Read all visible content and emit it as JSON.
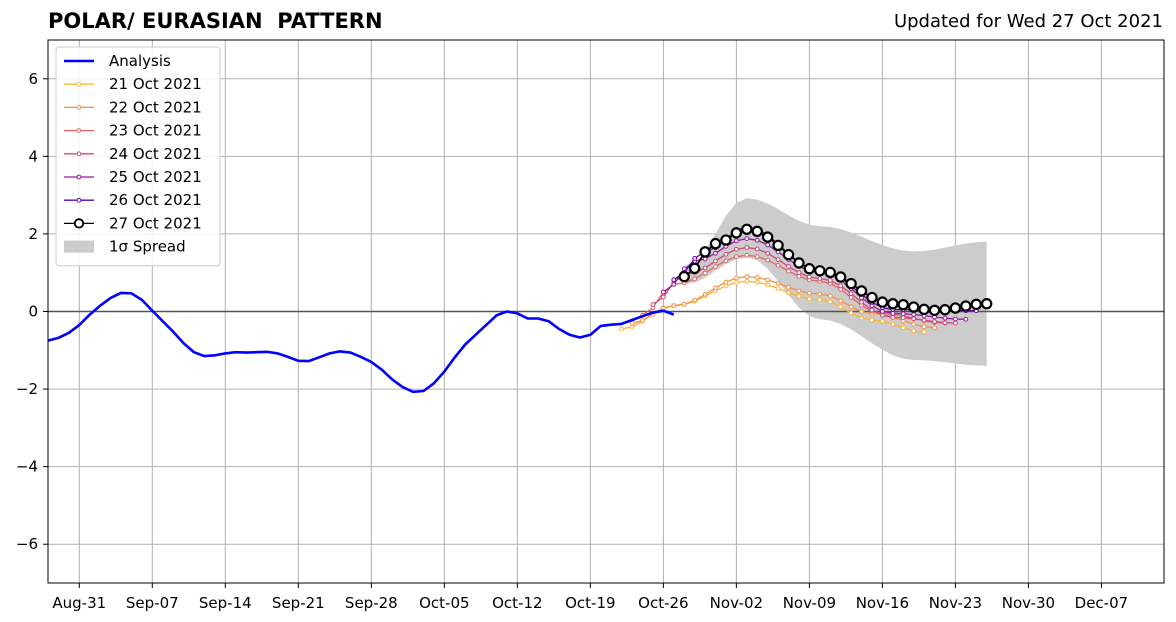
{
  "header": {
    "title": "POLAR/ EURASIAN  PATTERN",
    "updated": "Updated for Wed 27 Oct 2021"
  },
  "chart_data": {
    "type": "line",
    "title": "POLAR/ EURASIAN  PATTERN",
    "xlabel": "",
    "ylabel": "",
    "ylim": [
      -7,
      7
    ],
    "xlim": [
      "2021-08-28",
      "2021-12-13"
    ],
    "grid": true,
    "legend_position": "top-left",
    "y_ticks": [
      -6,
      -4,
      -2,
      0,
      2,
      4,
      6
    ],
    "y_tick_labels": [
      "−6",
      "−4",
      "−2",
      "0",
      "2",
      "4",
      "6"
    ],
    "x_ticks": [
      "2021-08-31",
      "2021-09-07",
      "2021-09-14",
      "2021-09-21",
      "2021-09-28",
      "2021-10-05",
      "2021-10-12",
      "2021-10-19",
      "2021-10-26",
      "2021-11-02",
      "2021-11-09",
      "2021-11-16",
      "2021-11-23",
      "2021-11-30",
      "2021-12-07"
    ],
    "x_tick_labels": [
      "Aug-31",
      "Sep-07",
      "Sep-14",
      "Sep-21",
      "Sep-28",
      "Oct-05",
      "Oct-12",
      "Oct-19",
      "Oct-26",
      "Nov-02",
      "Nov-09",
      "Nov-16",
      "Nov-23",
      "Nov-30",
      "Dec-07"
    ],
    "analysis": {
      "name": "Analysis",
      "color": "#0000ff",
      "points": [
        [
          "2021-08-28",
          -0.75
        ],
        [
          "2021-08-29",
          -0.68
        ],
        [
          "2021-08-30",
          -0.55
        ],
        [
          "2021-08-31",
          -0.35
        ],
        [
          "2021-09-01",
          -0.08
        ],
        [
          "2021-09-02",
          0.15
        ],
        [
          "2021-09-03",
          0.35
        ],
        [
          "2021-09-04",
          0.48
        ],
        [
          "2021-09-05",
          0.47
        ],
        [
          "2021-09-06",
          0.3
        ],
        [
          "2021-09-07",
          0.02
        ],
        [
          "2021-09-08",
          -0.25
        ],
        [
          "2021-09-09",
          -0.52
        ],
        [
          "2021-09-10",
          -0.82
        ],
        [
          "2021-09-11",
          -1.05
        ],
        [
          "2021-09-12",
          -1.15
        ],
        [
          "2021-09-13",
          -1.13
        ],
        [
          "2021-09-14",
          -1.08
        ],
        [
          "2021-09-15",
          -1.05
        ],
        [
          "2021-09-16",
          -1.06
        ],
        [
          "2021-09-17",
          -1.05
        ],
        [
          "2021-09-18",
          -1.04
        ],
        [
          "2021-09-19",
          -1.08
        ],
        [
          "2021-09-20",
          -1.17
        ],
        [
          "2021-09-21",
          -1.27
        ],
        [
          "2021-09-22",
          -1.28
        ],
        [
          "2021-09-23",
          -1.18
        ],
        [
          "2021-09-24",
          -1.08
        ],
        [
          "2021-09-25",
          -1.03
        ],
        [
          "2021-09-26",
          -1.06
        ],
        [
          "2021-09-27",
          -1.17
        ],
        [
          "2021-09-28",
          -1.3
        ],
        [
          "2021-09-29",
          -1.5
        ],
        [
          "2021-09-30",
          -1.75
        ],
        [
          "2021-10-01",
          -1.95
        ],
        [
          "2021-10-02",
          -2.07
        ],
        [
          "2021-10-03",
          -2.05
        ],
        [
          "2021-10-04",
          -1.85
        ],
        [
          "2021-10-05",
          -1.55
        ],
        [
          "2021-10-06",
          -1.18
        ],
        [
          "2021-10-07",
          -0.85
        ],
        [
          "2021-10-08",
          -0.6
        ],
        [
          "2021-10-09",
          -0.35
        ],
        [
          "2021-10-10",
          -0.1
        ],
        [
          "2021-10-11",
          0.0
        ],
        [
          "2021-10-12",
          -0.05
        ],
        [
          "2021-10-13",
          -0.18
        ],
        [
          "2021-10-14",
          -0.18
        ],
        [
          "2021-10-15",
          -0.25
        ],
        [
          "2021-10-16",
          -0.45
        ],
        [
          "2021-10-17",
          -0.6
        ],
        [
          "2021-10-18",
          -0.67
        ],
        [
          "2021-10-19",
          -0.6
        ],
        [
          "2021-10-20",
          -0.37
        ],
        [
          "2021-10-21",
          -0.34
        ],
        [
          "2021-10-22",
          -0.32
        ],
        [
          "2021-10-23",
          -0.22
        ],
        [
          "2021-10-24",
          -0.12
        ],
        [
          "2021-10-25",
          -0.03
        ],
        [
          "2021-10-26",
          0.02
        ],
        [
          "2021-10-27",
          -0.08
        ]
      ]
    },
    "forecasts": [
      {
        "name": "21 Oct 2021",
        "color": "#fdb42f",
        "points": [
          [
            "2021-10-22",
            -0.45
          ],
          [
            "2021-10-27",
            0.15
          ],
          [
            "2021-11-03",
            0.78
          ],
          [
            "2021-11-10",
            0.3
          ],
          [
            "2021-11-15",
            -0.22
          ],
          [
            "2021-11-20",
            -0.53
          ]
        ]
      },
      {
        "name": "22 Oct 2021",
        "color": "#f68f44",
        "points": [
          [
            "2021-10-23",
            -0.3
          ],
          [
            "2021-10-27",
            0.15
          ],
          [
            "2021-11-03",
            0.9
          ],
          [
            "2021-11-10",
            0.45
          ],
          [
            "2021-11-15",
            -0.05
          ],
          [
            "2021-11-21",
            -0.42
          ]
        ]
      },
      {
        "name": "23 Oct 2021",
        "color": "#e16462",
        "points": [
          [
            "2021-10-24",
            -0.1
          ],
          [
            "2021-10-27",
            0.7
          ],
          [
            "2021-11-03",
            1.45
          ],
          [
            "2021-11-10",
            0.78
          ],
          [
            "2021-11-16",
            -0.05
          ],
          [
            "2021-11-22",
            -0.3
          ]
        ]
      },
      {
        "name": "24 Oct 2021",
        "color": "#cc4778",
        "points": [
          [
            "2021-10-25",
            0.18
          ],
          [
            "2021-10-28",
            0.95
          ],
          [
            "2021-11-03",
            1.65
          ],
          [
            "2021-11-10",
            0.85
          ],
          [
            "2021-11-17",
            -0.15
          ],
          [
            "2021-11-23",
            -0.3
          ]
        ]
      },
      {
        "name": "25 Oct 2021",
        "color": "#9c179e",
        "points": [
          [
            "2021-10-26",
            0.5
          ],
          [
            "2021-10-29",
            1.3
          ],
          [
            "2021-11-03",
            1.88
          ],
          [
            "2021-11-10",
            1.0
          ],
          [
            "2021-11-17",
            -0.05
          ],
          [
            "2021-11-24",
            -0.2
          ]
        ]
      },
      {
        "name": "26 Oct 2021",
        "color": "#5c01a6",
        "points": [
          [
            "2021-10-27",
            0.82
          ],
          [
            "2021-10-30",
            1.55
          ],
          [
            "2021-11-03",
            2.18
          ],
          [
            "2021-11-10",
            1.05
          ],
          [
            "2021-11-17",
            0.05
          ],
          [
            "2021-11-25",
            0.02
          ]
        ]
      },
      {
        "name": "27 Oct 2021",
        "color": "#000000",
        "points": [
          [
            "2021-10-28",
            0.9
          ],
          [
            "2021-10-31",
            1.75
          ],
          [
            "2021-11-03",
            2.12
          ],
          [
            "2021-11-10",
            1.05
          ],
          [
            "2021-11-17",
            0.2
          ],
          [
            "2021-11-21",
            0.03
          ],
          [
            "2021-11-26",
            0.2
          ]
        ]
      }
    ],
    "spread": {
      "name": "1σ Spread",
      "color": "#cccccc",
      "upper": [
        [
          "2021-10-28",
          1.1
        ],
        [
          "2021-11-03",
          2.92
        ],
        [
          "2021-11-10",
          2.2
        ],
        [
          "2021-11-19",
          1.55
        ],
        [
          "2021-11-26",
          1.8
        ]
      ],
      "lower": [
        [
          "2021-10-28",
          0.7
        ],
        [
          "2021-11-03",
          1.4
        ],
        [
          "2021-11-10",
          -0.2
        ],
        [
          "2021-11-19",
          -1.25
        ],
        [
          "2021-11-26",
          -1.4
        ]
      ]
    }
  }
}
